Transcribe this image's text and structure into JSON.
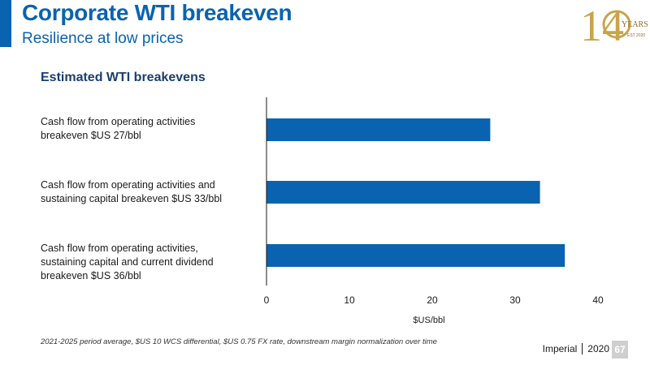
{
  "header": {
    "title": "Corporate WTI breakeven",
    "subtitle": "Resilience at low prices"
  },
  "logo": {
    "text": "140 YEARS EST 2020",
    "big_digits": "14",
    "years": "YEARS",
    "est": "EST 2020",
    "color": "#c9a44c"
  },
  "colors": {
    "accent": "#0a63b0",
    "bar": "#0a63b0"
  },
  "chart_data": {
    "type": "bar",
    "orientation": "horizontal",
    "title": "Estimated WTI breakevens",
    "categories": [
      "Cash flow from operating activities\nbreakeven $US 27/bbl",
      "Cash flow from operating activities and\nsustaining capital breakeven $US 33/bbl",
      "Cash flow from operating activities,\nsustaining capital and current dividend\nbreakeven $US 36/bbl"
    ],
    "values": [
      27,
      33,
      36
    ],
    "xlabel": "$US/bbl",
    "xlim": [
      0,
      40
    ],
    "xticks": [
      "0",
      "10",
      "20",
      "30",
      "40"
    ],
    "grid": false
  },
  "footnote": "2021-2025 period average, $US 10 WCS differential, $US 0.75 FX rate, downstream margin normalization over time",
  "footer": {
    "company": "Imperial",
    "year": "2020",
    "page": "67"
  }
}
